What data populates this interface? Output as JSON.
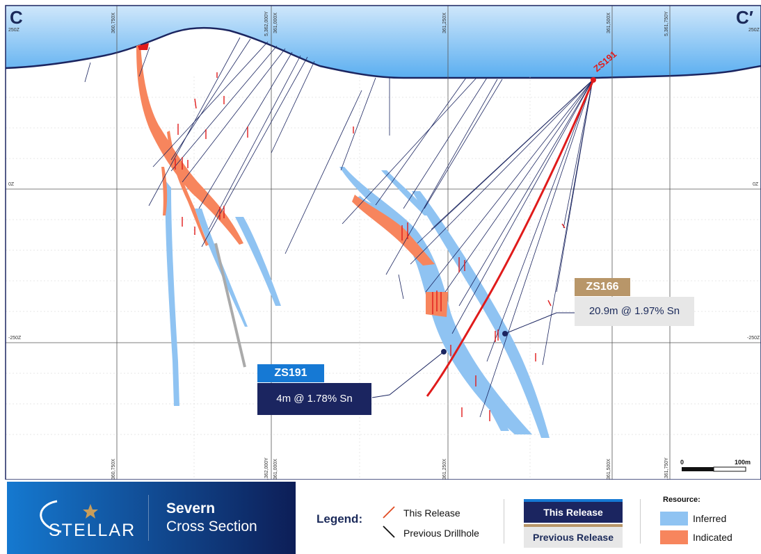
{
  "section": {
    "left_label": "C",
    "right_label": "C′"
  },
  "elevation_labels": {
    "top": "250Z",
    "middle": "0Z",
    "lower": "-250Z"
  },
  "grid_labels": {
    "e360750": "360,750X",
    "n5362000": "5,362,000Y",
    "e361000": "361,000X",
    "e361250": "361,250X",
    "e361500": "361,500X",
    "n5361750": "5,361,750Y"
  },
  "drillhole_label": "ZS191",
  "callouts": {
    "zs191": {
      "title": "ZS191",
      "body": "4m @ 1.78% Sn",
      "head_color": "#1679d4",
      "body_color": "#1b2560"
    },
    "zs166": {
      "title": "ZS166",
      "body": "20.9m @ 1.97% Sn",
      "head_color": "#b89669",
      "body_color": "#e7e7e7"
    }
  },
  "scale": {
    "start": "0",
    "end": "100m"
  },
  "brand": {
    "logo_text": "STELLAR",
    "title": "Severn",
    "subtitle": "Cross Section"
  },
  "legend": {
    "title": "Legend:",
    "this_release": "This Release",
    "previous_drillhole": "Previous Drillhole",
    "box_this": "This Release",
    "box_previous": "Previous Release"
  },
  "resource": {
    "title": "Resource:",
    "inferred": "Inferred",
    "indicated": "Indicated",
    "inferred_color": "#8fc3f2",
    "indicated_color": "#f7855d"
  },
  "colors": {
    "sky": "#76b9f0",
    "navy": "#1b2560",
    "red": "#e01b1b",
    "drill": "#1b2560"
  }
}
